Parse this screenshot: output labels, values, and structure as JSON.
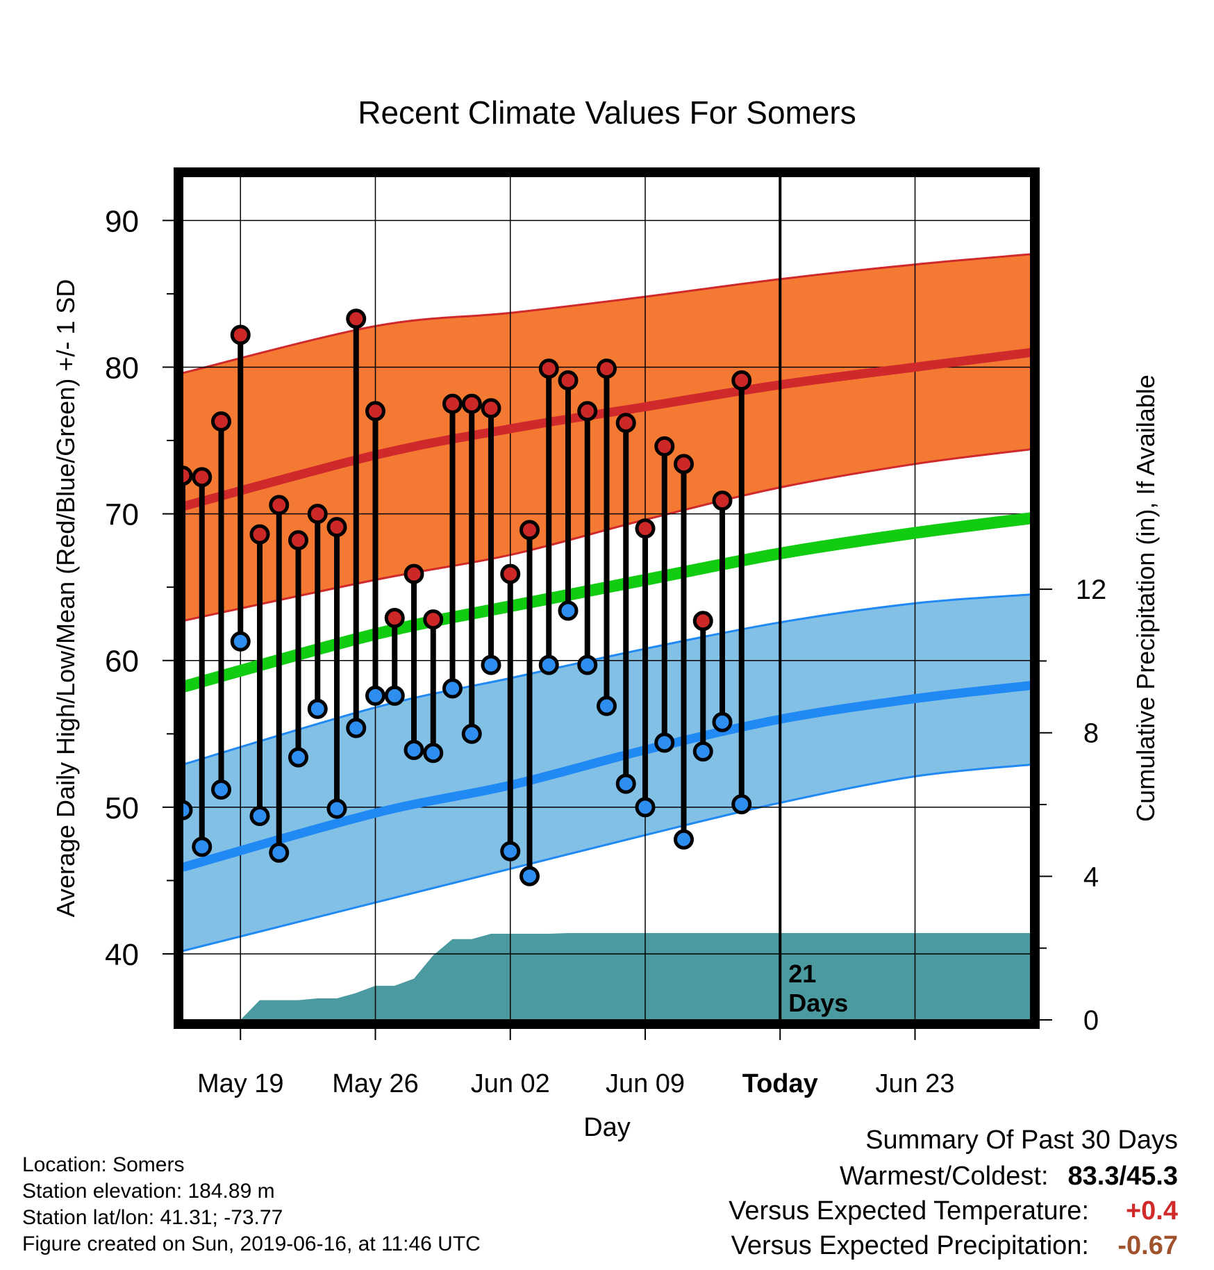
{
  "chart_data": {
    "type": "line",
    "title": "Recent Climate Values For Somers",
    "xlabel": "Day",
    "ylabel": "Average Daily High/Low/Mean (Red/Blue/Green) +/- 1 SD",
    "y2label": "Cumulative Precipitation (in), If Available",
    "ylim": [
      35.5,
      93
    ],
    "y2lim": [
      0,
      23.5
    ],
    "yticks": [
      40,
      50,
      60,
      70,
      80,
      90
    ],
    "y2ticks": [
      0,
      4,
      8,
      12
    ],
    "xrange": [
      "2019-05-16",
      "2019-06-29"
    ],
    "xticks": [
      {
        "date": "2019-05-19",
        "label": "May 19"
      },
      {
        "date": "2019-05-26",
        "label": "May 26"
      },
      {
        "date": "2019-06-02",
        "label": "Jun 02"
      },
      {
        "date": "2019-06-09",
        "label": "Jun 09"
      },
      {
        "date": "2019-06-16",
        "label": "Today"
      },
      {
        "date": "2019-06-23",
        "label": "Jun 23"
      }
    ],
    "today": "2019-06-16",
    "today_label": [
      "21",
      "Days"
    ],
    "grid": true,
    "colors": {
      "high_band": "#f47a33",
      "high_mean": "#d0292b",
      "low_band": "#83c0e6",
      "low_mean": "#2089f4",
      "mean": "#11cc11",
      "precip": "#4a9aa0",
      "high_marker": "#cc2828",
      "low_marker": "#2e8ef0"
    },
    "normals": {
      "dates": [
        "2019-05-16",
        "2019-05-26",
        "2019-06-02",
        "2019-06-09",
        "2019-06-16",
        "2019-06-23",
        "2019-06-29"
      ],
      "high_mean": [
        70.5,
        74.0,
        75.8,
        77.3,
        78.8,
        80.0,
        81.0
      ],
      "high_upper": [
        79.6,
        82.8,
        83.7,
        84.8,
        86.0,
        87.0,
        87.7
      ],
      "high_lower": [
        62.7,
        65.5,
        67.2,
        69.6,
        71.8,
        73.4,
        74.4
      ],
      "low_mean": [
        45.9,
        49.6,
        51.5,
        53.9,
        56.0,
        57.4,
        58.3
      ],
      "low_upper": [
        52.9,
        56.8,
        58.8,
        60.8,
        62.6,
        63.9,
        64.5
      ],
      "low_lower": [
        40.2,
        43.5,
        45.8,
        48.1,
        50.3,
        52.1,
        52.9
      ],
      "mean": [
        58.2,
        61.8,
        63.7,
        65.5,
        67.3,
        68.7,
        69.7
      ]
    },
    "observed": {
      "dates": [
        "2019-05-16",
        "2019-05-17",
        "2019-05-18",
        "2019-05-19",
        "2019-05-20",
        "2019-05-21",
        "2019-05-22",
        "2019-05-23",
        "2019-05-24",
        "2019-05-25",
        "2019-05-26",
        "2019-05-27",
        "2019-05-28",
        "2019-05-29",
        "2019-05-30",
        "2019-05-31",
        "2019-06-01",
        "2019-06-02",
        "2019-06-03",
        "2019-06-04",
        "2019-06-05",
        "2019-06-06",
        "2019-06-07",
        "2019-06-08",
        "2019-06-09",
        "2019-06-10",
        "2019-06-11",
        "2019-06-12",
        "2019-06-13",
        "2019-06-14",
        "2019-06-15"
      ],
      "high": [
        72.6,
        72.5,
        76.3,
        82.2,
        68.6,
        70.6,
        68.2,
        70.0,
        69.1,
        83.3,
        77.0,
        62.9,
        65.9,
        62.8,
        77.5,
        77.5,
        77.2,
        65.9,
        68.9,
        79.9,
        79.1,
        77.0,
        79.9,
        76.2,
        69.0,
        74.6,
        73.4,
        62.7,
        70.9,
        79.1,
        null
      ],
      "low": [
        49.8,
        47.3,
        51.2,
        61.3,
        49.4,
        46.9,
        53.4,
        56.7,
        49.9,
        55.4,
        57.6,
        57.6,
        53.9,
        53.7,
        58.1,
        55.0,
        59.7,
        47.0,
        45.3,
        59.7,
        63.4,
        59.7,
        56.9,
        51.6,
        50.0,
        54.4,
        47.8,
        53.8,
        55.8,
        50.2,
        null
      ]
    },
    "precip_cumulative": {
      "dates": [
        "2019-05-16",
        "2019-05-17",
        "2019-05-18",
        "2019-05-19",
        "2019-05-20",
        "2019-05-21",
        "2019-05-22",
        "2019-05-23",
        "2019-05-24",
        "2019-05-25",
        "2019-05-26",
        "2019-05-27",
        "2019-05-28",
        "2019-05-29",
        "2019-05-30",
        "2019-05-31",
        "2019-06-01",
        "2019-06-02",
        "2019-06-03",
        "2019-06-04",
        "2019-06-05",
        "2019-06-06",
        "2019-06-07",
        "2019-06-08",
        "2019-06-09",
        "2019-06-10",
        "2019-06-11",
        "2019-06-12",
        "2019-06-13",
        "2019-06-14",
        "2019-06-15",
        "2019-06-16",
        "2019-06-29"
      ],
      "values": [
        0.0,
        0.0,
        0.0,
        0.0,
        0.55,
        0.55,
        0.55,
        0.6,
        0.6,
        0.75,
        0.95,
        0.95,
        1.15,
        1.8,
        2.25,
        2.25,
        2.4,
        2.4,
        2.4,
        2.4,
        2.42,
        2.42,
        2.42,
        2.42,
        2.42,
        2.42,
        2.42,
        2.42,
        2.42,
        2.42,
        2.42,
        2.42,
        2.42
      ]
    }
  },
  "info": {
    "location": "Location: Somers",
    "elevation": "Station elevation: 184.89 m",
    "latlon": "Station lat/lon: 41.31; -73.77",
    "created": "Figure created on Sun, 2019-06-16, at 11:46 UTC"
  },
  "summary": {
    "title": "Summary Of Past 30 Days",
    "warmest_label": "Warmest/Coldest:",
    "warmest_value": "83.3/45.3",
    "temp_label": "Versus Expected Temperature:",
    "temp_value": "+0.4",
    "temp_color": "#d02a2a",
    "precip_label": "Versus Expected Precipitation:",
    "precip_value": "-0.67",
    "precip_color": "#a0522d"
  }
}
